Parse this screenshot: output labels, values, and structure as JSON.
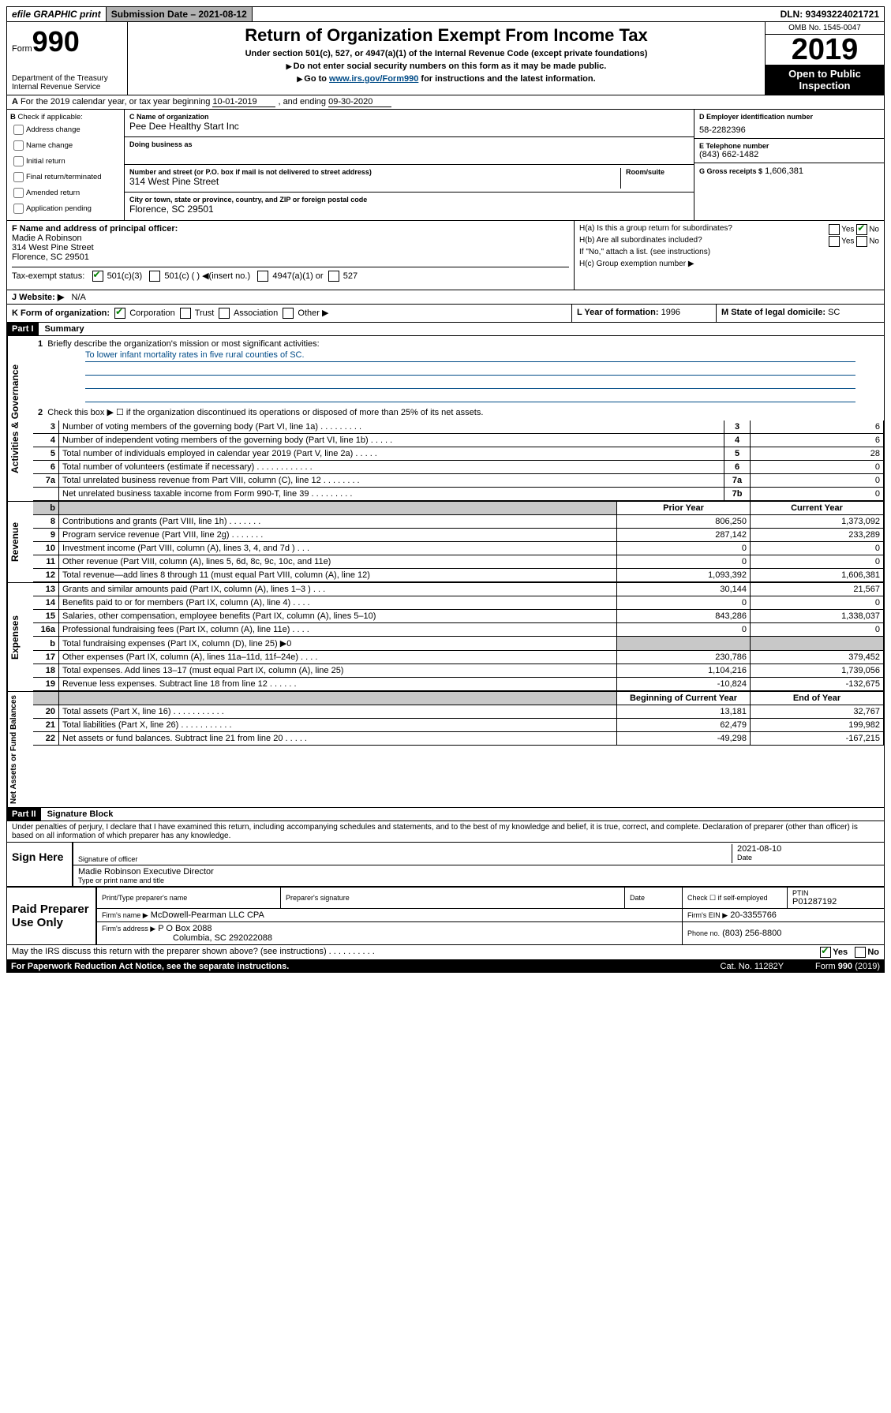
{
  "topbar": {
    "efile": "efile GRAPHIC print",
    "submission": "Submission Date – 2021-08-12",
    "dln": "DLN: 93493224021721"
  },
  "header": {
    "form_label": "Form",
    "form_number": "990",
    "dept": "Department of the Treasury",
    "irs": "Internal Revenue Service",
    "title": "Return of Organization Exempt From Income Tax",
    "subtitle": "Under section 501(c), 527, or 4947(a)(1) of the Internal Revenue Code (except private foundations)",
    "note1": "Do not enter social security numbers on this form as it may be made public.",
    "note2_pre": "Go to ",
    "note2_link": "www.irs.gov/Form990",
    "note2_post": " for instructions and the latest information.",
    "omb": "OMB No. 1545-0047",
    "year": "2019",
    "open": "Open to Public Inspection"
  },
  "row_a": {
    "text_pre": "For the 2019 calendar year, or tax year beginning ",
    "begin": "10-01-2019",
    "mid": " , and ending ",
    "end": "09-30-2020"
  },
  "box_b": {
    "title": "Check if applicable:",
    "items": [
      "Address change",
      "Name change",
      "Initial return",
      "Final return/terminated",
      "Amended return",
      "Application pending"
    ]
  },
  "box_c": {
    "name_label": "C Name of organization",
    "name": "Pee Dee Healthy Start Inc",
    "dba_label": "Doing business as",
    "addr_label": "Number and street (or P.O. box if mail is not delivered to street address)",
    "room_label": "Room/suite",
    "addr": "314 West Pine Street",
    "city_label": "City or town, state or province, country, and ZIP or foreign postal code",
    "city": "Florence, SC  29501"
  },
  "box_d": {
    "ein_label": "D Employer identification number",
    "ein": "58-2282396",
    "phone_label": "E Telephone number",
    "phone": "(843) 662-1482",
    "gross_label": "G Gross receipts $",
    "gross": "1,606,381"
  },
  "box_f": {
    "label": "F  Name and address of principal officer:",
    "name": "Madie A Robinson",
    "addr1": "314 West Pine Street",
    "addr2": "Florence, SC  29501"
  },
  "box_h": {
    "ha": "H(a)  Is this a group return for subordinates?",
    "hb": "H(b)  Are all subordinates included?",
    "hb_note": "If \"No,\" attach a list. (see instructions)",
    "hc": "H(c)  Group exemption number ▶",
    "yes": "Yes",
    "no": "No"
  },
  "tax_exempt": {
    "label": "Tax-exempt status:",
    "c3": "501(c)(3)",
    "c_other": "501(c) (  ) ◀(insert no.)",
    "a1": "4947(a)(1) or",
    "s527": "527"
  },
  "row_j": {
    "label": "J   Website: ▶",
    "val": "N/A"
  },
  "row_k": {
    "label": "K Form of organization:",
    "corp": "Corporation",
    "trust": "Trust",
    "assoc": "Association",
    "other": "Other ▶",
    "l_label": "L Year of formation:",
    "l_val": "1996",
    "m_label": "M State of legal domicile:",
    "m_val": "SC"
  },
  "part1": {
    "part": "Part I",
    "title": "Summary",
    "q1": "Briefly describe the organization's mission or most significant activities:",
    "mission": "To lower infant mortality rates in five rural counties of SC.",
    "q2": "Check this box ▶ ☐  if the organization discontinued its operations or disposed of more than 25% of its net assets.",
    "rows_single": [
      {
        "n": "3",
        "desc": "Number of voting members of the governing body (Part VI, line 1a)  .   .   .   .   .   .   .   .   .",
        "box": "3",
        "val": "6"
      },
      {
        "n": "4",
        "desc": "Number of independent voting members of the governing body (Part VI, line 1b)   .   .   .   .   .",
        "box": "4",
        "val": "6"
      },
      {
        "n": "5",
        "desc": "Total number of individuals employed in calendar year 2019 (Part V, line 2a)    .   .   .   .   .",
        "box": "5",
        "val": "28"
      },
      {
        "n": "6",
        "desc": "Total number of volunteers (estimate if necessary)   .   .   .   .   .   .   .   .   .   .   .   .",
        "box": "6",
        "val": "0"
      },
      {
        "n": "7a",
        "desc": "Total unrelated business revenue from Part VIII, column (C), line 12  .   .   .   .   .   .   .   .",
        "box": "7a",
        "val": "0"
      },
      {
        "n": "",
        "desc": "Net unrelated business taxable income from Form 990-T, line 39  .   .   .   .   .   .   .   .   .",
        "box": "7b",
        "val": "0"
      }
    ],
    "head_prior": "Prior Year",
    "head_current": "Current Year",
    "revenue": [
      {
        "n": "8",
        "desc": "Contributions and grants (Part VIII, line 1h)   .   .   .   .   .   .   .",
        "p": "806,250",
        "c": "1,373,092"
      },
      {
        "n": "9",
        "desc": "Program service revenue (Part VIII, line 2g)    .   .   .   .   .   .   .",
        "p": "287,142",
        "c": "233,289"
      },
      {
        "n": "10",
        "desc": "Investment income (Part VIII, column (A), lines 3, 4, and 7d )    .   .   .",
        "p": "0",
        "c": "0"
      },
      {
        "n": "11",
        "desc": "Other revenue (Part VIII, column (A), lines 5, 6d, 8c, 9c, 10c, and 11e)",
        "p": "0",
        "c": "0"
      },
      {
        "n": "12",
        "desc": "Total revenue—add lines 8 through 11 (must equal Part VIII, column (A), line 12)",
        "p": "1,093,392",
        "c": "1,606,381"
      }
    ],
    "expenses": [
      {
        "n": "13",
        "desc": "Grants and similar amounts paid (Part IX, column (A), lines 1–3 )    .   .   .",
        "p": "30,144",
        "c": "21,567"
      },
      {
        "n": "14",
        "desc": "Benefits paid to or for members (Part IX, column (A), line 4)   .   .   .   .",
        "p": "0",
        "c": "0"
      },
      {
        "n": "15",
        "desc": "Salaries, other compensation, employee benefits (Part IX, column (A), lines 5–10)",
        "p": "843,286",
        "c": "1,338,037"
      },
      {
        "n": "16a",
        "desc": "Professional fundraising fees (Part IX, column (A), line 11e)   .   .   .   .",
        "p": "0",
        "c": "0"
      },
      {
        "n": "b",
        "desc": "Total fundraising expenses (Part IX, column (D), line 25) ▶0",
        "p": "",
        "c": "",
        "gray": true
      },
      {
        "n": "17",
        "desc": "Other expenses (Part IX, column (A), lines 11a–11d, 11f–24e)   .   .   .   .",
        "p": "230,786",
        "c": "379,452"
      },
      {
        "n": "18",
        "desc": "Total expenses. Add lines 13–17 (must equal Part IX, column (A), line 25)",
        "p": "1,104,216",
        "c": "1,739,056"
      },
      {
        "n": "19",
        "desc": "Revenue less expenses. Subtract line 18 from line 12  .   .   .   .   .   .",
        "p": "-10,824",
        "c": "-132,675"
      }
    ],
    "head_begin": "Beginning of Current Year",
    "head_end": "End of Year",
    "netassets": [
      {
        "n": "20",
        "desc": "Total assets (Part X, line 16)    .   .   .   .   .   .   .   .   .   .   .",
        "p": "13,181",
        "c": "32,767"
      },
      {
        "n": "21",
        "desc": "Total liabilities (Part X, line 26)   .   .   .   .   .   .   .   .   .   .   .",
        "p": "62,479",
        "c": "199,982"
      },
      {
        "n": "22",
        "desc": "Net assets or fund balances. Subtract line 21 from line 20  .   .   .   .   .",
        "p": "-49,298",
        "c": "-167,215"
      }
    ]
  },
  "part2": {
    "part": "Part II",
    "title": "Signature Block",
    "perjury": "Under penalties of perjury, I declare that I have examined this return, including accompanying schedules and statements, and to the best of my knowledge and belief, it is true, correct, and complete. Declaration of preparer (other than officer) is based on all information of which preparer has any knowledge.",
    "sign_here": "Sign Here",
    "sig_officer": "Signature of officer",
    "date_label": "Date",
    "date_val": "2021-08-10",
    "typed_name": "Madie Robinson  Executive Director",
    "typed_label": "Type or print name and title",
    "paid": "Paid Preparer Use Only",
    "prep_name_label": "Print/Type preparer's name",
    "prep_sig_label": "Preparer's signature",
    "check_self": "Check ☐  if self-employed",
    "ptin_label": "PTIN",
    "ptin": "P01287192",
    "firm_name_label": "Firm's name     ▶",
    "firm_name": "McDowell-Pearman LLC CPA",
    "firm_ein_label": "Firm's EIN ▶",
    "firm_ein": "20-3355766",
    "firm_addr_label": "Firm's address ▶",
    "firm_addr": "P O Box 2088",
    "firm_city": "Columbia, SC  292022088",
    "firm_phone_label": "Phone no.",
    "firm_phone": "(803) 256-8800"
  },
  "footer": {
    "discuss": "May the IRS discuss this return with the preparer shown above? (see instructions)   .   .   .   .   .   .   .   .   .   .",
    "yes": "Yes",
    "no": "No",
    "paperwork": "For Paperwork Reduction Act Notice, see the separate instructions.",
    "cat": "Cat. No. 11282Y",
    "form": "Form 990 (2019)"
  },
  "side_labels": {
    "gov": "Activities & Governance",
    "rev": "Revenue",
    "exp": "Expenses",
    "net": "Net Assets or Fund Balances"
  }
}
